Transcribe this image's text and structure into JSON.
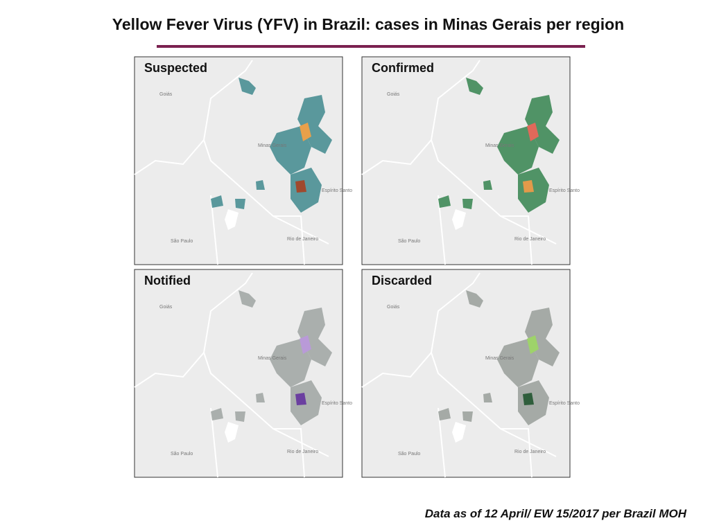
{
  "header": {
    "title": "Yellow Fever Virus (YFV) in Brazil: cases in Minas Gerais per region"
  },
  "panels": [
    {
      "label": "Suspected"
    },
    {
      "label": "Confirmed"
    },
    {
      "label": "Notified"
    },
    {
      "label": "Discarded"
    }
  ],
  "map_labels": {
    "goias": "Goiás",
    "minas": "Minas Gerais",
    "espirito": "Espírito Santo",
    "sao_paulo": "São Paulo",
    "rio": "Rio de Janeiro"
  },
  "footnote": "Data as of 12 April/ EW 15/2017 per Brazil MOH"
}
